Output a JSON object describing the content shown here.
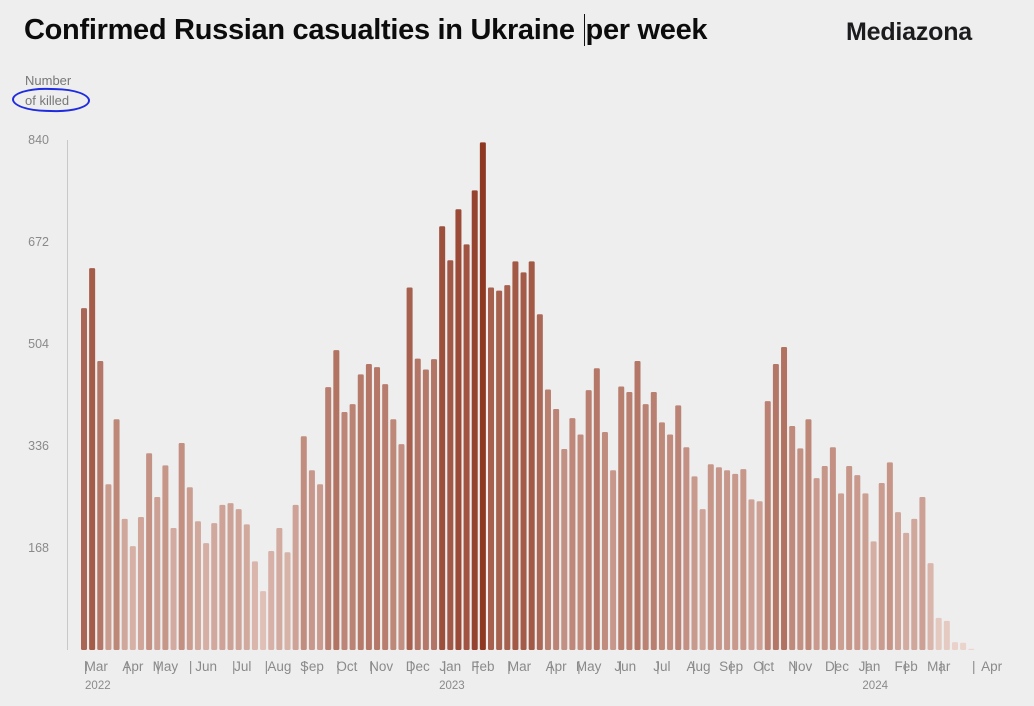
{
  "header": {
    "title_part1": "Confirmed Russian casualties in Ukraine",
    "title_part2": "per week",
    "brand": "Mediazona"
  },
  "y_axis_label": {
    "line1": "Number",
    "line2": "of killed"
  },
  "annotation": {
    "type": "hand-drawn circle around 'of killed'",
    "color": "#1f2be0"
  },
  "chart_data": {
    "type": "bar",
    "title": "Confirmed Russian casualties in Ukraine per week",
    "xlabel": "",
    "ylabel": "Number of killed",
    "ylim": [
      0,
      840
    ],
    "yticks": [
      168,
      336,
      504,
      672,
      840
    ],
    "grid": false,
    "legend": "none",
    "color_low": "#ecd6cf",
    "color_high": "#8e3620",
    "x_month_labels": [
      {
        "label": "Mar",
        "week": 1.5
      },
      {
        "label": "Apr",
        "week": 6
      },
      {
        "label": "May",
        "week": 10
      },
      {
        "label": "Jun",
        "week": 15
      },
      {
        "label": "Jul",
        "week": 19.5
      },
      {
        "label": "Aug",
        "week": 24
      },
      {
        "label": "Sep",
        "week": 28
      },
      {
        "label": "Oct",
        "week": 32.3
      },
      {
        "label": "Nov",
        "week": 36.5
      },
      {
        "label": "Dec",
        "week": 41
      },
      {
        "label": "Jan",
        "week": 45
      },
      {
        "label": "Feb",
        "week": 49
      },
      {
        "label": "Mar",
        "week": 53.5
      },
      {
        "label": "Apr",
        "week": 58
      },
      {
        "label": "May",
        "week": 62
      },
      {
        "label": "Jun",
        "week": 66.5
      },
      {
        "label": "Jul",
        "week": 71
      },
      {
        "label": "Aug",
        "week": 75.5
      },
      {
        "label": "Sep",
        "week": 79.5
      },
      {
        "label": "Oct",
        "week": 83.5
      },
      {
        "label": "Nov",
        "week": 88
      },
      {
        "label": "Dec",
        "week": 92.5
      },
      {
        "label": "Jan",
        "week": 96.5
      },
      {
        "label": "Feb",
        "week": 101
      },
      {
        "label": "Mar",
        "week": 105
      },
      {
        "label": "Apr",
        "week": 111.5
      }
    ],
    "x_month_separators": [
      0.2,
      5.3,
      9.1,
      13.1,
      18.4,
      22.4,
      27.1,
      31.2,
      35.3,
      40.2,
      44.3,
      48.3,
      52.2,
      57.4,
      60.8,
      65.9,
      70.5,
      74.9,
      79.5,
      83.4,
      87.3,
      92.3,
      96.1,
      100.9,
      105.3,
      109.3
    ],
    "x_year_labels": [
      {
        "label": "2022",
        "week": 1.7
      },
      {
        "label": "2023",
        "week": 45.2
      },
      {
        "label": "2024",
        "week": 97.2
      }
    ],
    "values": [
      563,
      629,
      476,
      273,
      380,
      216,
      171,
      219,
      324,
      252,
      304,
      201,
      341,
      268,
      212,
      176,
      209,
      239,
      242,
      232,
      207,
      146,
      97,
      163,
      201,
      161,
      239,
      352,
      296,
      273,
      433,
      494,
      392,
      405,
      454,
      471,
      466,
      438,
      380,
      339,
      597,
      480,
      462,
      479,
      698,
      642,
      726,
      668,
      757,
      836,
      597,
      592,
      601,
      640,
      622,
      640,
      553,
      429,
      397,
      331,
      382,
      355,
      428,
      464,
      359,
      296,
      434,
      425,
      476,
      405,
      425,
      375,
      355,
      403,
      334,
      286,
      232,
      306,
      301,
      296,
      290,
      298,
      248,
      245,
      410,
      471,
      499,
      369,
      332,
      380,
      283,
      303,
      334,
      258,
      303,
      288,
      258,
      179,
      275,
      309,
      227,
      193,
      216,
      252,
      143,
      53,
      48,
      13,
      12,
      2
    ]
  }
}
